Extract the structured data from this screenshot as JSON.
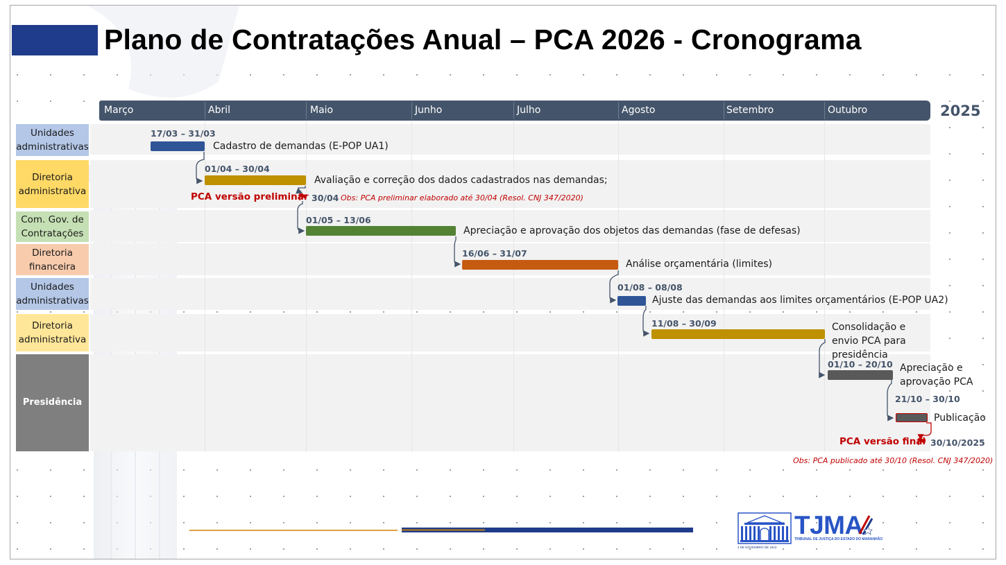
{
  "title": "Plano de Contratações Anual – PCA 2026 - Cronograma",
  "year": "2025",
  "months": [
    "Março",
    "Abril",
    "Maio",
    "Junho",
    "Julho",
    "Agosto",
    "Setembro",
    "Outubro"
  ],
  "stages": [
    {
      "label": "Unidades administrativas",
      "color": "#b4c7e7"
    },
    {
      "label": "Diretoria administrativa",
      "color": "#ffd966"
    },
    {
      "label": "Com. Gov. de Contratações",
      "color": "#c5e0b4"
    },
    {
      "label": "Diretoria financeira",
      "color": "#f8cbad"
    },
    {
      "label": "Unidades administrativas",
      "color": "#b4c7e7"
    },
    {
      "label": "Diretoria administrativa",
      "color": "#ffe699"
    },
    {
      "label": "Presidência",
      "color": "#7f7f7f"
    }
  ],
  "tasks": [
    {
      "dates": "17/03 – 31/03",
      "label": "Cadastro de demandas (E-POP UA1)",
      "color": "#2f5597"
    },
    {
      "dates": "01/04 – 30/04",
      "label": "Avaliação e correção dos dados cadastrados nas demandas;",
      "color": "#bf9000"
    },
    {
      "dates": "01/05 – 13/06",
      "label": "Apreciação e aprovação dos objetos das demandas (fase de defesas)",
      "color": "#548235"
    },
    {
      "dates": "16/06 – 31/07",
      "label": "Análise orçamentária (limites)",
      "color": "#c55a11"
    },
    {
      "dates": "01/08 – 08/08",
      "label": "Ajuste das demandas aos limites orçamentários (E-POP UA2)",
      "color": "#2f5597"
    },
    {
      "dates": "11/08 – 30/09",
      "label": "Consolidação e envio PCA para presidência",
      "color": "#bf9000"
    },
    {
      "dates": "01/10 – 20/10",
      "label": "Apreciação e aprovação PCA",
      "color": "#595959"
    },
    {
      "dates": "21/10 – 30/10",
      "label": "Publicação",
      "color": "#595959"
    }
  ],
  "milestones": {
    "preliminar": {
      "label": "PCA versão preliminar",
      "date": "30/04",
      "obs": "Obs: PCA preliminar elaborado até 30/04 (Resol. CNJ 347/2020)"
    },
    "final": {
      "label": "PCA versão final",
      "date": "30/10/2025",
      "obs": "Obs: PCA publicado até 30/10 (Resol. CNJ 347/2020)"
    }
  },
  "colors": {
    "accent_blue": "#1f3b8c",
    "month_bar": "#44546a",
    "milestone_red": "#c00000"
  },
  "logo": {
    "text": "TJMA",
    "subtitle": "TRIBUNAL DE JUSTIÇA DO ESTADO DO MARANHÃO",
    "building_caption": "4 DE NOVEMBRO DE 1813"
  }
}
